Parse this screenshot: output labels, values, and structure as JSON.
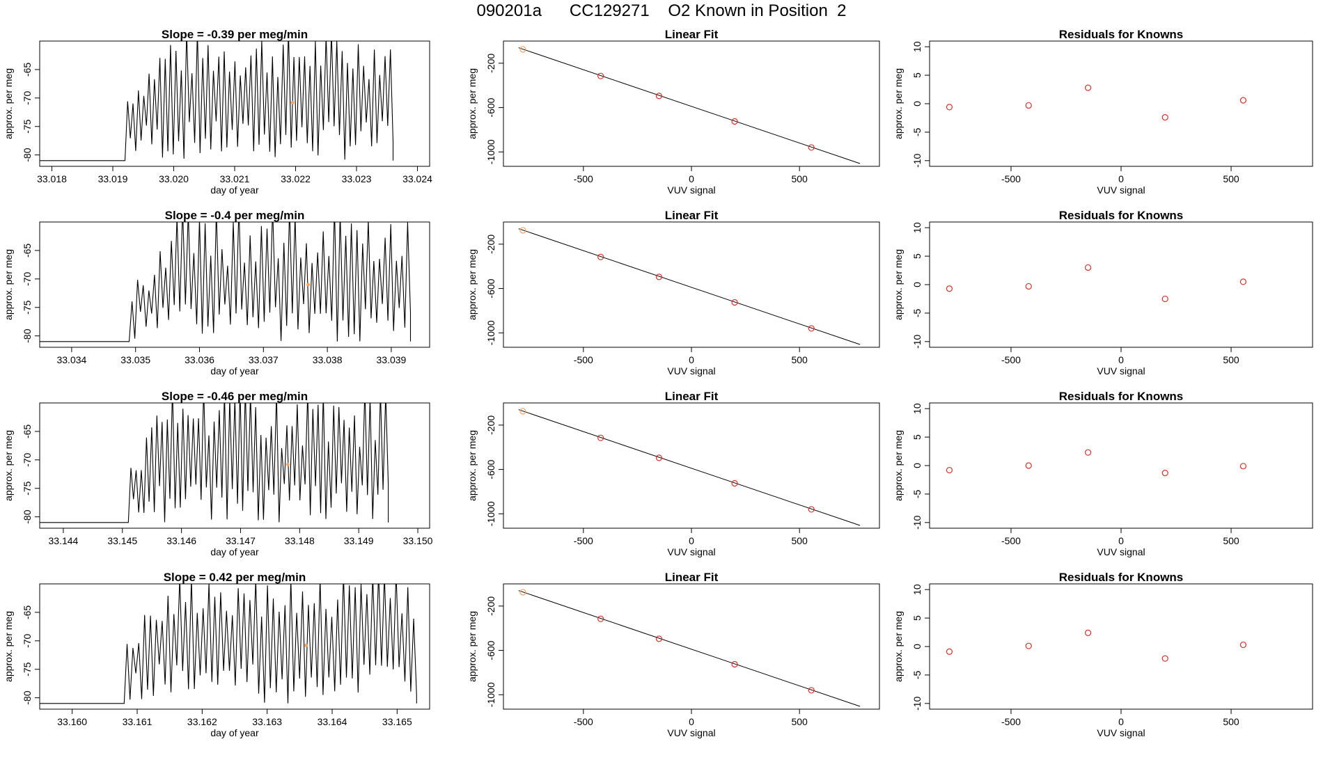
{
  "page": {
    "title": "090201a      CC129271    O2 Known in Position  2"
  },
  "colors": {
    "trace": "#000000",
    "open_point": "#d73027",
    "fitted_point": "#f4a261",
    "axis": "#000000"
  },
  "chart_data": [
    {
      "type": "line",
      "panel": "time-series",
      "title": "Slope =  -0.39  per meg/min",
      "xlabel": "day of year",
      "ylabel": "approx. per meg",
      "xlim": [
        33.0178,
        33.0242
      ],
      "ylim": [
        -82,
        -60
      ],
      "xticks": [
        33.018,
        33.019,
        33.02,
        33.021,
        33.022,
        33.023,
        33.024
      ],
      "xtick_labels": [
        "33.018",
        "33.019",
        "33.020",
        "33.021",
        "33.022",
        "33.023",
        "33.024"
      ],
      "yticks": [
        -80,
        -75,
        -70,
        -65
      ],
      "ytick_labels": [
        "-80",
        "-75",
        "-70",
        "-65"
      ],
      "signal": {
        "x_start": 33.0192,
        "x_end": 33.0236,
        "baseline": -81,
        "n_peaks": 50,
        "peak_min": -75,
        "peak_max": -60,
        "trough_min": -81,
        "trough_max": -74
      },
      "marker": {
        "x": 33.02195,
        "y": -70.8
      }
    },
    {
      "type": "scatter",
      "panel": "linear-fit",
      "title": "Linear Fit",
      "xlabel": "VUV signal",
      "ylabel": "approx. per meg",
      "xlim": [
        -870,
        870
      ],
      "ylim": [
        -1130,
        0
      ],
      "xticks": [
        -500,
        0,
        500
      ],
      "xtick_labels": [
        "-500",
        "0",
        "500"
      ],
      "yticks": [
        -1000,
        -600,
        -200
      ],
      "ytick_labels": [
        "-1000",
        "-600",
        "-200"
      ],
      "points": [
        {
          "x": -780,
          "y": -75
        },
        {
          "x": -420,
          "y": -315
        },
        {
          "x": -150,
          "y": -495
        },
        {
          "x": 200,
          "y": -725
        },
        {
          "x": 555,
          "y": -960
        }
      ],
      "fit_line": [
        {
          "x": -800,
          "y": -60
        },
        {
          "x": 780,
          "y": -1105
        }
      ]
    },
    {
      "type": "scatter",
      "panel": "residuals",
      "title": "Residuals for Knowns",
      "xlabel": "VUV signal",
      "ylabel": "approx. per meg",
      "xlim": [
        -870,
        870
      ],
      "ylim": [
        -11,
        11
      ],
      "xticks": [
        -500,
        0,
        500
      ],
      "xtick_labels": [
        "-500",
        "0",
        "500"
      ],
      "yticks": [
        -10,
        -5,
        0,
        5,
        10
      ],
      "ytick_labels": [
        "-10",
        "-5",
        "0",
        "5",
        "10"
      ],
      "points": [
        {
          "x": -780,
          "y": -0.6
        },
        {
          "x": -420,
          "y": -0.3
        },
        {
          "x": -150,
          "y": 2.8
        },
        {
          "x": 200,
          "y": -2.4
        },
        {
          "x": 555,
          "y": 0.6
        }
      ]
    },
    {
      "type": "line",
      "panel": "time-series",
      "title": "Slope =  -0.4  per meg/min",
      "xlabel": "day of year",
      "ylabel": "approx. per meg",
      "xlim": [
        33.0335,
        33.0396
      ],
      "ylim": [
        -82,
        -60
      ],
      "xticks": [
        33.034,
        33.035,
        33.036,
        33.037,
        33.038,
        33.039
      ],
      "xtick_labels": [
        "33.034",
        "33.035",
        "33.036",
        "33.037",
        "33.038",
        "33.039"
      ],
      "yticks": [
        -80,
        -75,
        -70,
        -65
      ],
      "ytick_labels": [
        "-80",
        "-75",
        "-70",
        "-65"
      ],
      "signal": {
        "x_start": 33.0349,
        "x_end": 33.0393,
        "baseline": -81,
        "n_peaks": 50,
        "peak_min": -78,
        "peak_max": -60,
        "trough_min": -81,
        "trough_max": -74
      },
      "marker": {
        "x": 33.0377,
        "y": -71
      }
    },
    {
      "type": "scatter",
      "panel": "linear-fit",
      "title": "Linear Fit",
      "xlabel": "VUV signal",
      "ylabel": "approx. per meg",
      "xlim": [
        -870,
        870
      ],
      "ylim": [
        -1130,
        0
      ],
      "xticks": [
        -500,
        0,
        500
      ],
      "xtick_labels": [
        "-500",
        "0",
        "500"
      ],
      "yticks": [
        -1000,
        -600,
        -200
      ],
      "ytick_labels": [
        "-1000",
        "-600",
        "-200"
      ],
      "points": [
        {
          "x": -780,
          "y": -75
        },
        {
          "x": -420,
          "y": -315
        },
        {
          "x": -150,
          "y": -495
        },
        {
          "x": 200,
          "y": -725
        },
        {
          "x": 555,
          "y": -960
        }
      ],
      "fit_line": [
        {
          "x": -800,
          "y": -60
        },
        {
          "x": 780,
          "y": -1105
        }
      ]
    },
    {
      "type": "scatter",
      "panel": "residuals",
      "title": "Residuals for Knowns",
      "xlabel": "VUV signal",
      "ylabel": "approx. per meg",
      "xlim": [
        -870,
        870
      ],
      "ylim": [
        -11,
        11
      ],
      "xticks": [
        -500,
        0,
        500
      ],
      "xtick_labels": [
        "-500",
        "0",
        "500"
      ],
      "yticks": [
        -10,
        -5,
        0,
        5,
        10
      ],
      "ytick_labels": [
        "-10",
        "-5",
        "0",
        "5",
        "10"
      ],
      "points": [
        {
          "x": -780,
          "y": -0.7
        },
        {
          "x": -420,
          "y": -0.3
        },
        {
          "x": -150,
          "y": 3.0
        },
        {
          "x": 200,
          "y": -2.5
        },
        {
          "x": 555,
          "y": 0.5
        }
      ]
    },
    {
      "type": "line",
      "panel": "time-series",
      "title": "Slope =  -0.46  per meg/min",
      "xlabel": "day of year",
      "ylabel": "approx. per meg",
      "xlim": [
        33.1436,
        33.1502
      ],
      "ylim": [
        -82,
        -60
      ],
      "xticks": [
        33.144,
        33.145,
        33.146,
        33.147,
        33.148,
        33.149,
        33.15
      ],
      "xtick_labels": [
        "33.144",
        "33.145",
        "33.146",
        "33.147",
        "33.148",
        "33.149",
        "33.150"
      ],
      "yticks": [
        -80,
        -75,
        -70,
        -65
      ],
      "ytick_labels": [
        "-80",
        "-75",
        "-70",
        "-65"
      ],
      "signal": {
        "x_start": 33.1451,
        "x_end": 33.1495,
        "baseline": -81,
        "n_peaks": 50,
        "peak_min": -78,
        "peak_max": -60,
        "trough_min": -81,
        "trough_max": -74
      },
      "marker": {
        "x": 33.1478,
        "y": -70.8
      }
    },
    {
      "type": "scatter",
      "panel": "linear-fit",
      "title": "Linear Fit",
      "xlabel": "VUV signal",
      "ylabel": "approx. per meg",
      "xlim": [
        -870,
        870
      ],
      "ylim": [
        -1130,
        0
      ],
      "xticks": [
        -500,
        0,
        500
      ],
      "xtick_labels": [
        "-500",
        "0",
        "500"
      ],
      "yticks": [
        -1000,
        -600,
        -200
      ],
      "ytick_labels": [
        "-1000",
        "-600",
        "-200"
      ],
      "points": [
        {
          "x": -780,
          "y": -75
        },
        {
          "x": -420,
          "y": -315
        },
        {
          "x": -150,
          "y": -495
        },
        {
          "x": 200,
          "y": -725
        },
        {
          "x": 555,
          "y": -960
        }
      ],
      "fit_line": [
        {
          "x": -800,
          "y": -60
        },
        {
          "x": 780,
          "y": -1105
        }
      ]
    },
    {
      "type": "scatter",
      "panel": "residuals",
      "title": "Residuals for Knowns",
      "xlabel": "VUV signal",
      "ylabel": "approx. per meg",
      "xlim": [
        -870,
        870
      ],
      "ylim": [
        -11,
        11
      ],
      "xticks": [
        -500,
        0,
        500
      ],
      "xtick_labels": [
        "-500",
        "0",
        "500"
      ],
      "yticks": [
        -10,
        -5,
        0,
        5,
        10
      ],
      "ytick_labels": [
        "-10",
        "-5",
        "0",
        "5",
        "10"
      ],
      "points": [
        {
          "x": -780,
          "y": -0.8
        },
        {
          "x": -420,
          "y": 0.0
        },
        {
          "x": -150,
          "y": 2.3
        },
        {
          "x": 200,
          "y": -1.3
        },
        {
          "x": 555,
          "y": -0.1
        }
      ]
    },
    {
      "type": "line",
      "panel": "time-series",
      "title": "Slope =  0.42  per meg/min",
      "xlabel": "day of year",
      "ylabel": "approx. per meg",
      "xlim": [
        33.1595,
        33.1655
      ],
      "ylim": [
        -82,
        -60
      ],
      "xticks": [
        33.16,
        33.161,
        33.162,
        33.163,
        33.164,
        33.165
      ],
      "xtick_labels": [
        "33.160",
        "33.161",
        "33.162",
        "33.163",
        "33.164",
        "33.165"
      ],
      "yticks": [
        -80,
        -75,
        -70,
        -65
      ],
      "ytick_labels": [
        "-80",
        "-75",
        "-70",
        "-65"
      ],
      "signal": {
        "x_start": 33.1608,
        "x_end": 33.1653,
        "baseline": -81,
        "n_peaks": 50,
        "peak_min": -75,
        "peak_max": -60,
        "trough_min": -81,
        "trough_max": -74
      },
      "marker": {
        "x": 33.1636,
        "y": -70.8
      }
    },
    {
      "type": "scatter",
      "panel": "linear-fit",
      "title": "Linear Fit",
      "xlabel": "VUV signal",
      "ylabel": "approx. per meg",
      "xlim": [
        -870,
        870
      ],
      "ylim": [
        -1130,
        0
      ],
      "xticks": [
        -500,
        0,
        500
      ],
      "xtick_labels": [
        "-500",
        "0",
        "500"
      ],
      "yticks": [
        -1000,
        -600,
        -200
      ],
      "ytick_labels": [
        "-1000",
        "-600",
        "-200"
      ],
      "points": [
        {
          "x": -780,
          "y": -75
        },
        {
          "x": -420,
          "y": -315
        },
        {
          "x": -150,
          "y": -495
        },
        {
          "x": 200,
          "y": -725
        },
        {
          "x": 555,
          "y": -960
        }
      ],
      "fit_line": [
        {
          "x": -800,
          "y": -60
        },
        {
          "x": 780,
          "y": -1105
        }
      ]
    },
    {
      "type": "scatter",
      "panel": "residuals",
      "title": "Residuals for Knowns",
      "xlabel": "VUV signal",
      "ylabel": "approx. per meg",
      "xlim": [
        -870,
        870
      ],
      "ylim": [
        -11,
        11
      ],
      "xticks": [
        -500,
        0,
        500
      ],
      "xtick_labels": [
        "-500",
        "0",
        "500"
      ],
      "yticks": [
        -10,
        -5,
        0,
        5,
        10
      ],
      "ytick_labels": [
        "-10",
        "-5",
        "0",
        "5",
        "10"
      ],
      "points": [
        {
          "x": -780,
          "y": -0.9
        },
        {
          "x": -420,
          "y": 0.1
        },
        {
          "x": -150,
          "y": 2.4
        },
        {
          "x": 200,
          "y": -2.1
        },
        {
          "x": 555,
          "y": 0.3
        }
      ]
    }
  ]
}
